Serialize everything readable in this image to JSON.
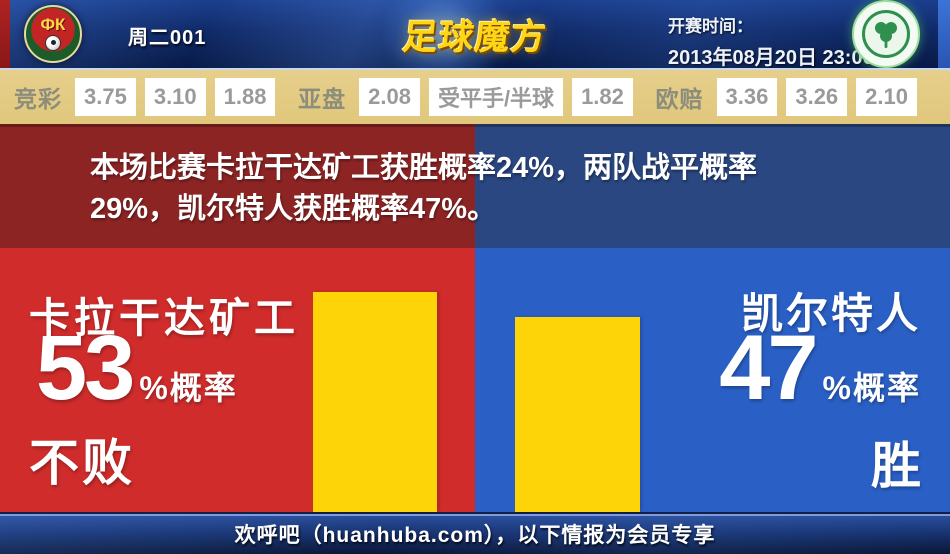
{
  "header": {
    "match_code": "周二001",
    "brand": "足球魔方",
    "kickoff_label": "开赛时间：",
    "kickoff_time": "2013年08月20日 23:00",
    "home_badge_text": "ФК"
  },
  "odds_bar": {
    "groups": [
      {
        "label": "竞彩",
        "values": [
          "3.75",
          "3.10",
          "1.88"
        ]
      },
      {
        "label": "亚盘",
        "values": [
          "2.08",
          "受平手/半球",
          "1.82"
        ]
      },
      {
        "label": "欧赔",
        "values": [
          "3.36",
          "3.26",
          "2.10"
        ]
      }
    ]
  },
  "prediction": {
    "lines": [
      "本场比赛卡拉干达矿工获胜概率24%，两队战平概率",
      "29%，凯尔特人获胜概率47%。"
    ],
    "home_win_percent": 24,
    "draw_percent": 29,
    "away_win_percent": 47
  },
  "home": {
    "name": "卡拉干达矿工",
    "percent": "53",
    "percent_suffix": "%概率",
    "outcome": "不败",
    "probability": 53
  },
  "away": {
    "name": "凯尔特人",
    "percent": "47",
    "percent_suffix": "%概率",
    "outcome": "胜",
    "probability": 47
  },
  "footer": {
    "text": "欢呼吧（huanhuba.com），以下情报为会员专享"
  },
  "colors": {
    "home_red": "#d02c2c",
    "home_dark_red": "#8c2424",
    "away_blue": "#2a60c6",
    "away_dark_blue": "#2a4781",
    "bar_yellow": "#fdd408",
    "odds_bg_tan": "#e2ca81",
    "header_navy": "#102a68",
    "brand_gold": "#ffd517"
  }
}
